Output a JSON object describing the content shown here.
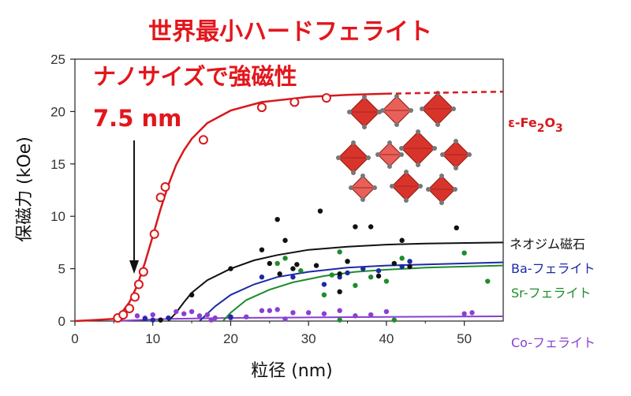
{
  "chart_data": {
    "type": "scatter",
    "title": "世界最小ハードフェライト",
    "xlabel": "粒径 (nm)",
    "ylabel": "保磁力 (kOe)",
    "xlim": [
      0,
      55
    ],
    "ylim": [
      0,
      25
    ],
    "xticks": [
      0,
      10,
      20,
      30,
      40,
      50
    ],
    "yticks": [
      0,
      5,
      10,
      15,
      20,
      25
    ],
    "grid": false,
    "legend_position": "right",
    "annotations": {
      "headline": "ナノサイズで強磁性",
      "size_value": "7.5 nm",
      "arrow_x": 7.5
    },
    "series": [
      {
        "name": "ε-Fe2O3",
        "label_main": "ε-Fe",
        "label_sub1": "2",
        "label_mid": "O",
        "label_sub2": "3",
        "color": "#d7191c",
        "marker": "open-circle",
        "points": [
          [
            5.5,
            0.3
          ],
          [
            6.2,
            0.6
          ],
          [
            7.0,
            1.2
          ],
          [
            7.7,
            2.3
          ],
          [
            8.2,
            3.5
          ],
          [
            8.8,
            4.7
          ],
          [
            10.2,
            8.3
          ],
          [
            11.0,
            11.8
          ],
          [
            11.6,
            12.8
          ],
          [
            16.5,
            17.3
          ],
          [
            24.0,
            20.4
          ],
          [
            28.2,
            20.9
          ],
          [
            32.3,
            21.3
          ]
        ],
        "fit": [
          [
            0,
            0
          ],
          [
            5,
            0.2
          ],
          [
            6,
            0.8
          ],
          [
            7,
            1.8
          ],
          [
            8,
            3.4
          ],
          [
            9,
            5.6
          ],
          [
            10,
            8.1
          ],
          [
            11,
            10.7
          ],
          [
            12,
            13.0
          ],
          [
            13,
            14.9
          ],
          [
            14,
            16.3
          ],
          [
            15,
            17.4
          ],
          [
            17,
            18.9
          ],
          [
            20,
            20.1
          ],
          [
            24,
            20.9
          ],
          [
            30,
            21.4
          ],
          [
            35,
            21.6
          ],
          [
            40,
            21.7
          ]
        ],
        "fit_extension": [
          [
            40,
            21.7
          ],
          [
            47,
            21.8
          ],
          [
            55,
            21.9
          ]
        ]
      },
      {
        "name": "ネオジム磁石",
        "color": "#111111",
        "marker": "dot",
        "points": [
          [
            11,
            0.1
          ],
          [
            15,
            2.5
          ],
          [
            20,
            5.0
          ],
          [
            24,
            6.8
          ],
          [
            25,
            5.5
          ],
          [
            26,
            9.7
          ],
          [
            26.3,
            4.5
          ],
          [
            27,
            7.7
          ],
          [
            28,
            5.0
          ],
          [
            28.5,
            5.4
          ],
          [
            31,
            5.3
          ],
          [
            31.5,
            10.5
          ],
          [
            34,
            4.5
          ],
          [
            34,
            2.8
          ],
          [
            35,
            5.7
          ],
          [
            36,
            9.0
          ],
          [
            38,
            9.0
          ],
          [
            39,
            4.3
          ],
          [
            41,
            5.5
          ],
          [
            42,
            7.7
          ],
          [
            43,
            5.2
          ],
          [
            49,
            8.9
          ]
        ],
        "fit": [
          [
            12,
            0
          ],
          [
            13,
            0.8
          ],
          [
            14,
            1.8
          ],
          [
            15,
            2.7
          ],
          [
            17,
            3.9
          ],
          [
            20,
            5.0
          ],
          [
            23,
            5.8
          ],
          [
            26,
            6.3
          ],
          [
            30,
            6.8
          ],
          [
            35,
            7.1
          ],
          [
            40,
            7.3
          ],
          [
            45,
            7.4
          ],
          [
            55,
            7.5
          ]
        ]
      },
      {
        "name": "Ba-フェライト",
        "color": "#1c2aa6",
        "marker": "dot",
        "points": [
          [
            9,
            0.2
          ],
          [
            10,
            0.1
          ],
          [
            11,
            0.1
          ],
          [
            12,
            0.3
          ],
          [
            20,
            0.4
          ],
          [
            24,
            4.2
          ],
          [
            28,
            4.2
          ],
          [
            32,
            3.5
          ],
          [
            34,
            4.2
          ],
          [
            35,
            4.6
          ],
          [
            37,
            5.0
          ],
          [
            39,
            4.8
          ],
          [
            42,
            5.2
          ],
          [
            43,
            5.7
          ]
        ],
        "fit": [
          [
            16,
            0
          ],
          [
            17,
            0.7
          ],
          [
            18,
            1.4
          ],
          [
            20,
            2.5
          ],
          [
            23,
            3.5
          ],
          [
            26,
            4.2
          ],
          [
            30,
            4.7
          ],
          [
            35,
            5.1
          ],
          [
            40,
            5.3
          ],
          [
            45,
            5.4
          ],
          [
            55,
            5.6
          ]
        ]
      },
      {
        "name": "Sr-フェライト",
        "color": "#1f8c2c",
        "marker": "dot",
        "points": [
          [
            26,
            5.5
          ],
          [
            27,
            6.0
          ],
          [
            29,
            4.8
          ],
          [
            32,
            2.5
          ],
          [
            33,
            4.4
          ],
          [
            34,
            6.6
          ],
          [
            35,
            5.7
          ],
          [
            36,
            3.4
          ],
          [
            38,
            4.2
          ],
          [
            40,
            3.8
          ],
          [
            41,
            0.1
          ],
          [
            42,
            6.0
          ],
          [
            50,
            6.5
          ],
          [
            53,
            3.8
          ],
          [
            34,
            0.1
          ]
        ],
        "fit": [
          [
            19,
            0
          ],
          [
            20,
            0.8
          ],
          [
            22,
            2.0
          ],
          [
            25,
            3.0
          ],
          [
            28,
            3.7
          ],
          [
            32,
            4.3
          ],
          [
            36,
            4.7
          ],
          [
            40,
            4.9
          ],
          [
            45,
            5.1
          ],
          [
            55,
            5.3
          ]
        ]
      },
      {
        "name": "Co-フェライト",
        "color": "#8a3fd1",
        "marker": "dot",
        "points": [
          [
            6,
            0.3
          ],
          [
            8,
            0.5
          ],
          [
            9,
            0.3
          ],
          [
            10,
            0.6
          ],
          [
            13,
            0.9
          ],
          [
            14,
            0.7
          ],
          [
            15,
            0.9
          ],
          [
            16,
            0.5
          ],
          [
            17,
            0.6
          ],
          [
            18,
            0.3
          ],
          [
            20,
            0.3
          ],
          [
            22,
            0.4
          ],
          [
            24,
            1.0
          ],
          [
            25,
            1.0
          ],
          [
            26,
            1.1
          ],
          [
            28,
            0.8
          ],
          [
            30,
            0.8
          ],
          [
            32,
            0.7
          ],
          [
            34,
            1.0
          ],
          [
            36,
            0.5
          ],
          [
            38,
            0.6
          ],
          [
            40,
            0.9
          ],
          [
            50,
            0.7
          ],
          [
            51,
            0.8
          ],
          [
            27,
            0.2
          ],
          [
            17.5,
            0.1
          ]
        ],
        "fit": [
          [
            5,
            0
          ],
          [
            8,
            0.1
          ],
          [
            12,
            0.2
          ],
          [
            20,
            0.3
          ],
          [
            30,
            0.35
          ],
          [
            40,
            0.4
          ],
          [
            55,
            0.45
          ]
        ]
      }
    ]
  }
}
